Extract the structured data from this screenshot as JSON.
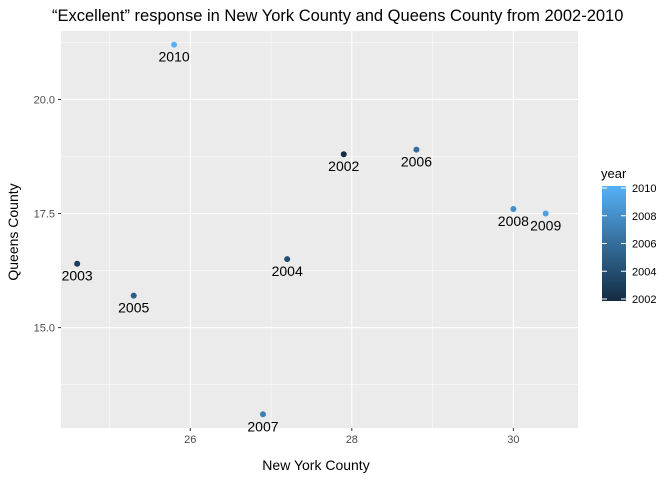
{
  "chart_data": {
    "type": "scatter",
    "title": "“Excellent” response in New York County and Queens County from 2002-2010",
    "xlabel": "New York County",
    "ylabel": "Queens County",
    "xlim": [
      24.4,
      30.8
    ],
    "ylim": [
      12.8,
      21.5
    ],
    "x_ticks": [
      26,
      28,
      30
    ],
    "x_tick_labels": [
      "26",
      "28",
      "30"
    ],
    "y_ticks": [
      15.0,
      17.5,
      20.0
    ],
    "y_tick_labels": [
      "15.0",
      "17.5",
      "20.0"
    ],
    "grid": true,
    "legend": {
      "title": "year",
      "position": "right",
      "values": [
        2002,
        2004,
        2006,
        2008,
        2010
      ],
      "labels": [
        "2002",
        "2004",
        "2006",
        "2008",
        "2010"
      ],
      "color_low": "#132b43",
      "color_high": "#56b1f7"
    },
    "points": [
      {
        "label": "2002",
        "year": 2002,
        "x": 27.9,
        "y": 18.8
      },
      {
        "label": "2003",
        "year": 2003,
        "x": 24.6,
        "y": 16.4
      },
      {
        "label": "2004",
        "year": 2004,
        "x": 27.2,
        "y": 16.5
      },
      {
        "label": "2005",
        "year": 2005,
        "x": 25.3,
        "y": 15.7
      },
      {
        "label": "2006",
        "year": 2006,
        "x": 28.8,
        "y": 18.9
      },
      {
        "label": "2007",
        "year": 2007,
        "x": 26.9,
        "y": 13.1
      },
      {
        "label": "2008",
        "year": 2008,
        "x": 30.0,
        "y": 17.6
      },
      {
        "label": "2009",
        "year": 2009,
        "x": 30.4,
        "y": 17.5
      },
      {
        "label": "2010",
        "year": 2010,
        "x": 25.8,
        "y": 21.2
      }
    ],
    "panel_background": "#ebebeb",
    "grid_color": "#ffffff"
  }
}
